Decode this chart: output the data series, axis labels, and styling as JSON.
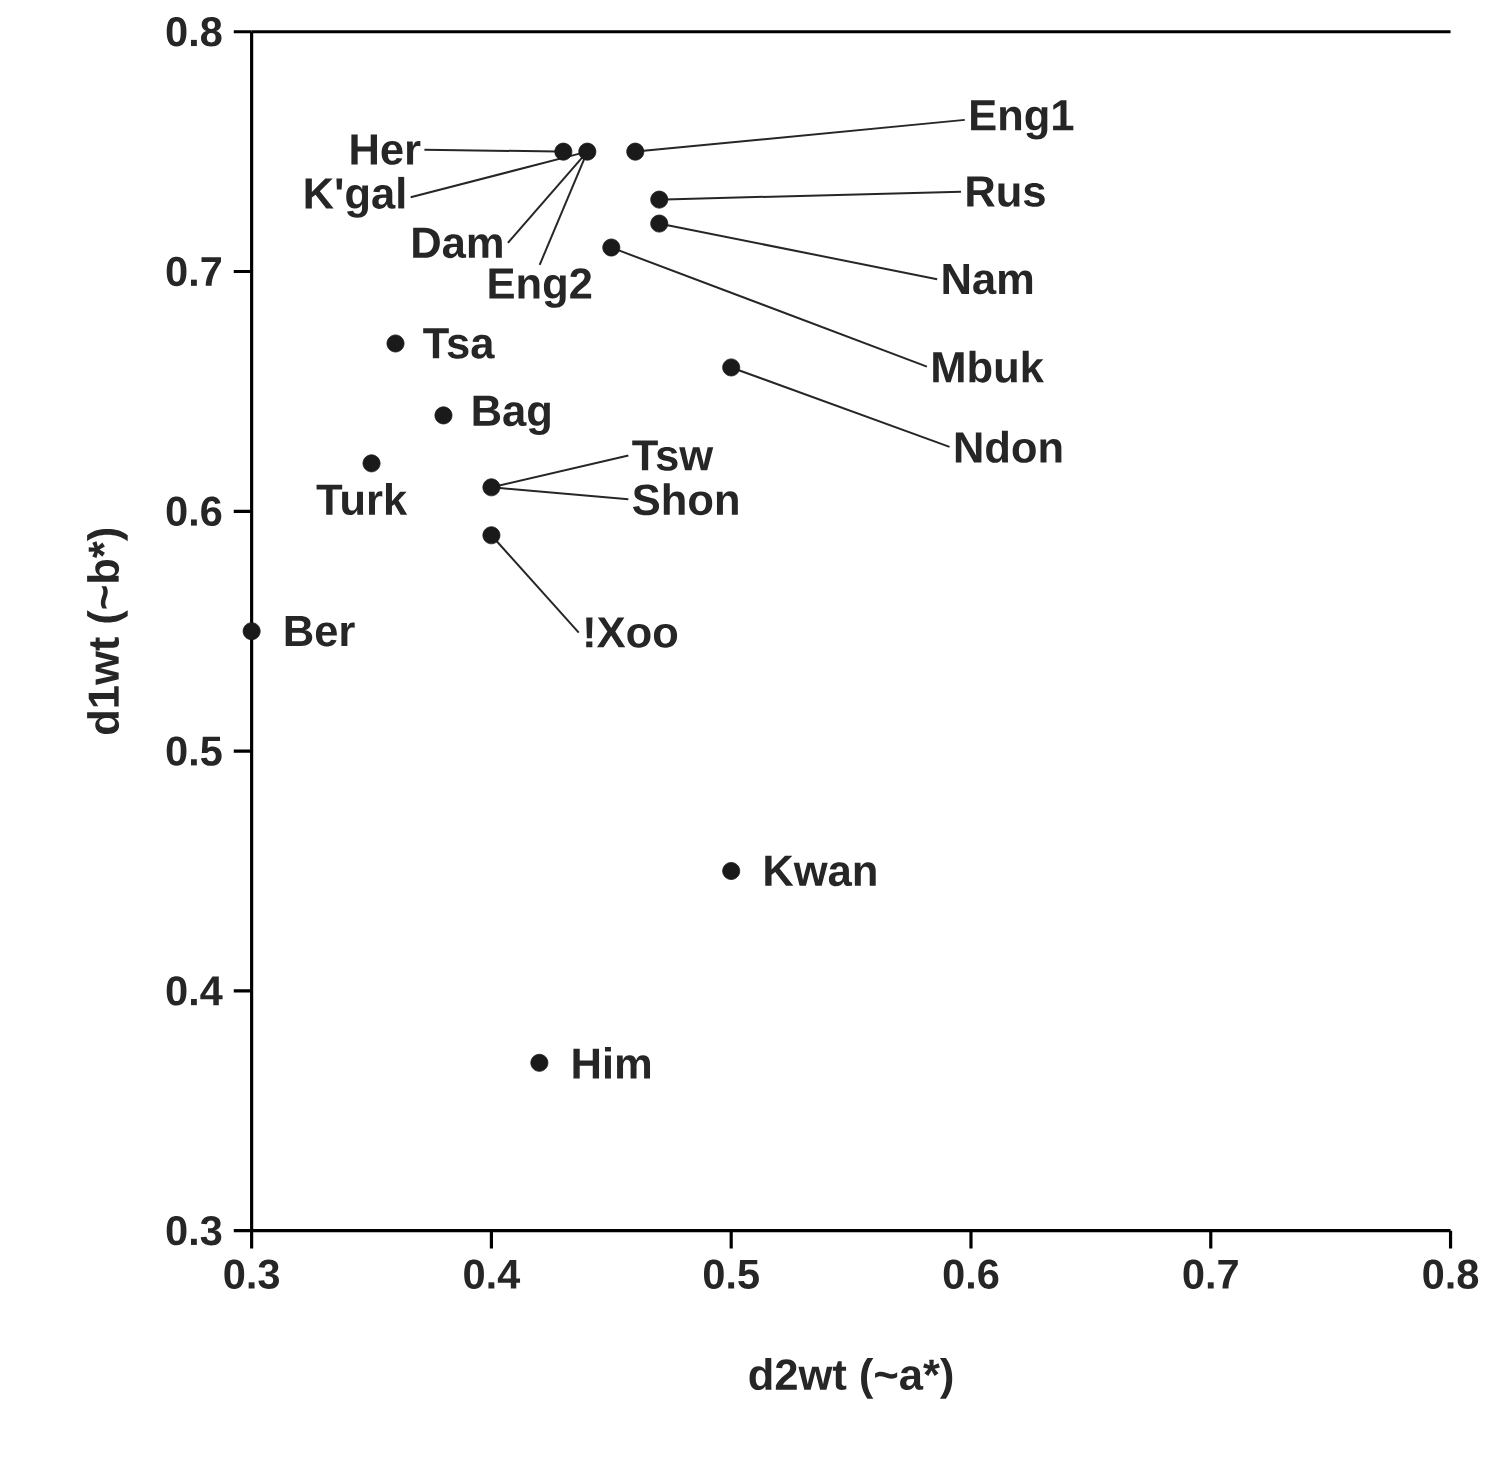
{
  "chart_data": {
    "type": "scatter",
    "xlabel": "d2wt (~a*)",
    "ylabel": "d1wt (~b*)",
    "x": [
      0.46,
      0.47,
      0.47,
      0.45,
      0.5,
      0.43,
      0.44,
      0.36,
      0.38,
      0.35,
      0.4,
      0.4,
      0.3,
      0.5,
      0.42
    ],
    "values": [
      0.75,
      0.73,
      0.72,
      0.71,
      0.66,
      0.75,
      0.75,
      0.67,
      0.64,
      0.62,
      0.61,
      0.59,
      0.55,
      0.45,
      0.37
    ],
    "color": "#1a1a1a",
    "marker": "circle",
    "xlim": [
      0.3,
      0.8
    ],
    "ylim": [
      0.3,
      0.8
    ],
    "xticks": [
      0.3,
      0.4,
      0.5,
      0.6,
      0.7,
      0.8
    ],
    "yticks": [
      0.3,
      0.4,
      0.5,
      0.6,
      0.7,
      0.8
    ],
    "annotations": [
      {
        "text": "Eng1",
        "x": 0.46,
        "y": 0.75
      },
      {
        "text": "Rus",
        "x": 0.47,
        "y": 0.73
      },
      {
        "text": "Nam",
        "x": 0.47,
        "y": 0.72
      },
      {
        "text": "Mbuk",
        "x": 0.45,
        "y": 0.71
      },
      {
        "text": "Ndon",
        "x": 0.5,
        "y": 0.66
      },
      "Her",
      {
        "text": "K'gal",
        "x": 0.44,
        "y": 0.75
      },
      {
        "text": "Dam",
        "x": 0.44,
        "y": 0.75
      },
      {
        "text": "Eng2",
        "x": 0.44,
        "y": 0.75
      },
      {
        "text": "Tsa",
        "x": 0.36,
        "y": 0.67
      },
      {
        "text": "Bag",
        "x": 0.38,
        "y": 0.64
      },
      {
        "text": "Turk",
        "x": 0.35,
        "y": 0.62
      },
      {
        "text": "Tsw",
        "x": 0.4,
        "y": 0.61
      },
      {
        "text": "Shon",
        "x": 0.4,
        "y": 0.61
      },
      {
        "text": "!Xoo",
        "x": 0.4,
        "y": 0.59
      },
      {
        "text": "Ber",
        "x": 0.3,
        "y": 0.55
      },
      {
        "text": "Kwan",
        "x": 0.5,
        "y": 0.45
      },
      {
        "text": "Him",
        "x": 0.42,
        "y": 0.37
      }
    ]
  }
}
